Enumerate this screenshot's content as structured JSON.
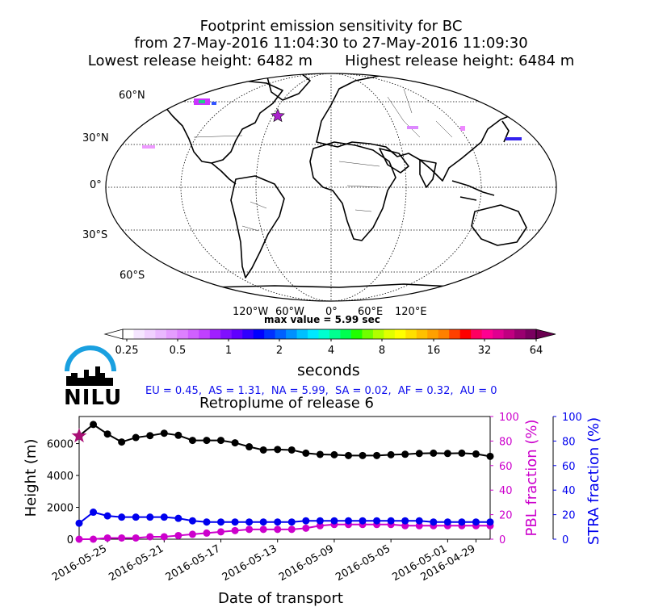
{
  "header": {
    "line1": "Footprint emission sensitivity for BC",
    "line2": "from 27-May-2016 11:04:30 to 27-May-2016 11:09:30",
    "line3": "Lowest release height: 6482 m       Highest release height: 6484 m"
  },
  "map": {
    "lat_labels": [
      "60°N",
      "30°N",
      "0°",
      "30°S",
      "60°S"
    ],
    "lon_labels": [
      "120°W",
      "60°W",
      "0°",
      "60°E",
      "120°E"
    ],
    "max_value_text": "max value = 5.99 sec",
    "release_marker_color": "#aa22cc"
  },
  "colorbar": {
    "tick_labels": [
      "0.25",
      "0.5",
      "1",
      "2",
      "4",
      "8",
      "16",
      "32",
      "64"
    ],
    "unit_label": "seconds"
  },
  "logo": {
    "text": "NILU",
    "arc_color": "#1aa0e0"
  },
  "source_fractions": "EU = 0.45,  AS = 1.31,  NA = 5.99,  SA = 0.02,  AF = 0.32,  AU = 0",
  "chart_data": {
    "type": "line",
    "title": "Retroplume of release 6",
    "xlabel": "Date of transport",
    "ylabel": "Height (m)",
    "y2label": "PBL fraction (%)",
    "y3label": "STRA fraction (%)",
    "x_tick_labels": [
      "2016-05-25",
      "2016-05-21",
      "2016-05-17",
      "2016-05-13",
      "2016-05-09",
      "2016-05-05",
      "2016-05-01",
      "2016-04-29"
    ],
    "ylim": [
      0,
      7700
    ],
    "y_ticks": [
      "0",
      "2000",
      "4000",
      "6000"
    ],
    "y2lim": [
      0,
      100
    ],
    "y2_ticks": [
      "0",
      "20",
      "40",
      "60",
      "80",
      "100"
    ],
    "y3lim": [
      0,
      100
    ],
    "y3_ticks": [
      "0",
      "20",
      "40",
      "60",
      "80",
      "100"
    ],
    "x": [
      "2016-05-27",
      "2016-05-26",
      "2016-05-25",
      "2016-05-24",
      "2016-05-23",
      "2016-05-22",
      "2016-05-21",
      "2016-05-20",
      "2016-05-19",
      "2016-05-18",
      "2016-05-17",
      "2016-05-16",
      "2016-05-15",
      "2016-05-14",
      "2016-05-13",
      "2016-05-12",
      "2016-05-11",
      "2016-05-10",
      "2016-05-09",
      "2016-05-08",
      "2016-05-07",
      "2016-05-06",
      "2016-05-05",
      "2016-05-04",
      "2016-05-03",
      "2016-05-02",
      "2016-05-01",
      "2016-04-30",
      "2016-04-29",
      "2016-04-28"
    ],
    "series": [
      {
        "axis": "height",
        "color": "#000000",
        "values": [
          6480,
          7200,
          6600,
          6100,
          6380,
          6500,
          6650,
          6520,
          6200,
          6200,
          6200,
          6050,
          5800,
          5600,
          5630,
          5600,
          5400,
          5320,
          5300,
          5250,
          5250,
          5250,
          5300,
          5330,
          5380,
          5400,
          5380,
          5400,
          5350,
          5200
        ]
      },
      {
        "axis": "pbl",
        "color": "#cc00cc",
        "values": [
          0,
          0,
          1,
          1,
          1,
          2,
          2,
          3,
          4,
          5,
          6,
          7,
          8,
          8,
          8,
          8,
          9,
          11,
          12,
          12,
          12,
          12,
          12,
          11,
          11,
          11,
          11,
          11,
          11,
          11
        ]
      },
      {
        "axis": "stra",
        "color": "#0000ee",
        "values": [
          13,
          22,
          19,
          18,
          18,
          18,
          18,
          17,
          15,
          14,
          14,
          14,
          14,
          14,
          14,
          14,
          15,
          15,
          15,
          15,
          15,
          15,
          15,
          15,
          15,
          14,
          14,
          14,
          14,
          14
        ]
      }
    ],
    "release_point": {
      "height": 6480,
      "color": "#aa1177"
    }
  }
}
